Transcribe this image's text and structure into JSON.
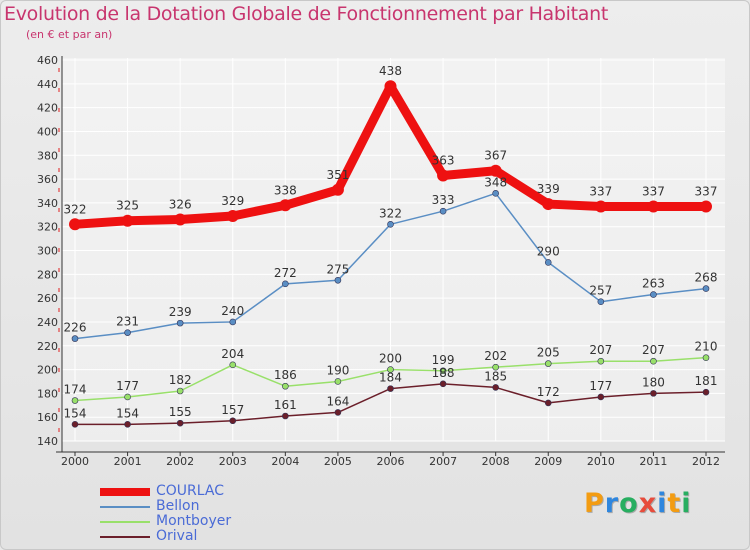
{
  "title": "Evolution de la Dotation Globale de Fonctionnement par Habitant",
  "subtitle": "(en € et par an)",
  "brand": {
    "letters": [
      "P",
      "r",
      "o",
      "x",
      "i",
      "t",
      "i"
    ],
    "colors": [
      "#f39c12",
      "#2e86de",
      "#27ae60",
      "#e74c3c",
      "#2e86de",
      "#f39c12",
      "#27ae60"
    ]
  },
  "chart_data": {
    "type": "line",
    "x": [
      "2000",
      "2001",
      "2002",
      "2003",
      "2004",
      "2005",
      "2006",
      "2007",
      "2008",
      "2009",
      "2010",
      "2011",
      "2012"
    ],
    "ylim": [
      140,
      460
    ],
    "yticks": [
      "140",
      "160",
      "180",
      "200",
      "220",
      "240",
      "260",
      "280",
      "300",
      "320",
      "340",
      "360",
      "380",
      "400",
      "420",
      "440",
      "460"
    ],
    "grid": true,
    "legend_position": "bottom-left",
    "series": [
      {
        "name": "COURLAC",
        "color": "#ee1111",
        "values": [
          322,
          325,
          326,
          329,
          338,
          351,
          438,
          363,
          367,
          339,
          337,
          337,
          337
        ],
        "labels": [
          "322",
          "325",
          "326",
          "329",
          "338",
          "351",
          "438",
          "363",
          "367",
          "339",
          "337",
          "337",
          "337"
        ]
      },
      {
        "name": "Bellon",
        "color": "#5a8ec4",
        "values": [
          226,
          231,
          239,
          240,
          272,
          275,
          322,
          333,
          348,
          290,
          257,
          263,
          268
        ],
        "labels": [
          "226",
          "231",
          "239",
          "240",
          "272",
          "275",
          "322",
          "333",
          "348",
          "290",
          "257",
          "263",
          "268"
        ]
      },
      {
        "name": "Montboyer",
        "color": "#99e06a",
        "values": [
          174,
          177,
          182,
          204,
          186,
          190,
          200,
          199,
          202,
          205,
          207,
          207,
          210
        ],
        "labels": [
          "174",
          "177",
          "182",
          "204",
          "186",
          "190",
          "200",
          "199",
          "202",
          "205",
          "207",
          "207",
          "210"
        ]
      },
      {
        "name": "Orival",
        "color": "#6b1f2a",
        "values": [
          154,
          154,
          155,
          157,
          161,
          164,
          184,
          188,
          185,
          172,
          177,
          180,
          181
        ],
        "labels": [
          "154",
          "154",
          "155",
          "157",
          "161",
          "164",
          "184",
          "188",
          "185",
          "172",
          "177",
          "180",
          "181"
        ]
      }
    ]
  }
}
